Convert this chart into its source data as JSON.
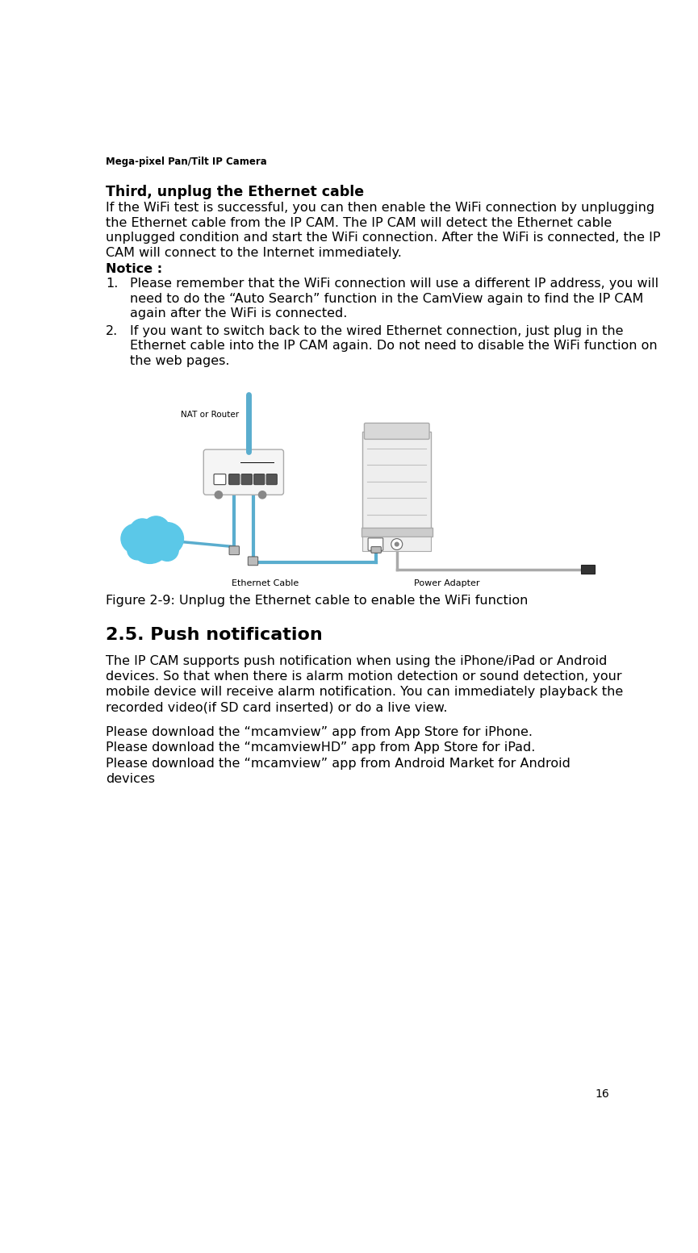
{
  "page_title": "Mega-pixel Pan/Tilt IP Camera",
  "page_number": "16",
  "background_color": "#ffffff",
  "text_color": "#000000",
  "header_font_size": 8.5,
  "body_font_size": 11.5,
  "bold_heading": "Third, unplug the Ethernet cable",
  "bold_heading_size": 12.5,
  "body_text_lines": [
    "If the WiFi test is successful, you can then enable the WiFi connection by unplugging",
    "the Ethernet cable from the IP CAM. The IP CAM will detect the Ethernet cable",
    "unpluggedcondition and start the WiFi connection. After the WiFi is connected, the IP",
    "CAM will connect to the Internet immediately."
  ],
  "notice_label": "Notice :",
  "notice1_lines": [
    "Please remember that the WiFi connection will use a different IP address, you will",
    "need to do the “Auto Search” function in the CamView again to find the IP CAM",
    "again after the WiFi is connected."
  ],
  "notice2_lines": [
    "If you want to switch back to the wired Ethernet connection, just plug in the",
    "Ethernet cable into the IP CAM again. Do not need to disable the WiFi function on",
    "the web pages."
  ],
  "figure_caption": "Figure 2-9: Unplug the Ethernet cable to enable the WiFi function",
  "section_heading": "2.5. Push notification",
  "section_heading_size": 16,
  "section_body_lines": [
    "The IP CAM supports push notification when using the iPhone/iPad or Android",
    "devices. So that when there is alarm motion detection or sound detection, your",
    "mobile device will receive alarm notification. You can immediately playback the",
    "recorded video(if SD card inserted) or do a live view."
  ],
  "download_lines": [
    "Please download the “mcamview” app from App Store for iPhone.",
    "Please download the “mcamviewHD” app from App Store for iPad.",
    "Please download the “mcamview” app from Android Market for Android",
    "devices"
  ],
  "internet_color": "#5bc8e8",
  "cable_color": "#5aadce",
  "router_fill": "#f5f5f5",
  "router_stroke": "#aaaaaa",
  "cam_fill": "#eeeeee",
  "cam_stroke": "#aaaaaa",
  "power_cable_color": "#aaaaaa"
}
